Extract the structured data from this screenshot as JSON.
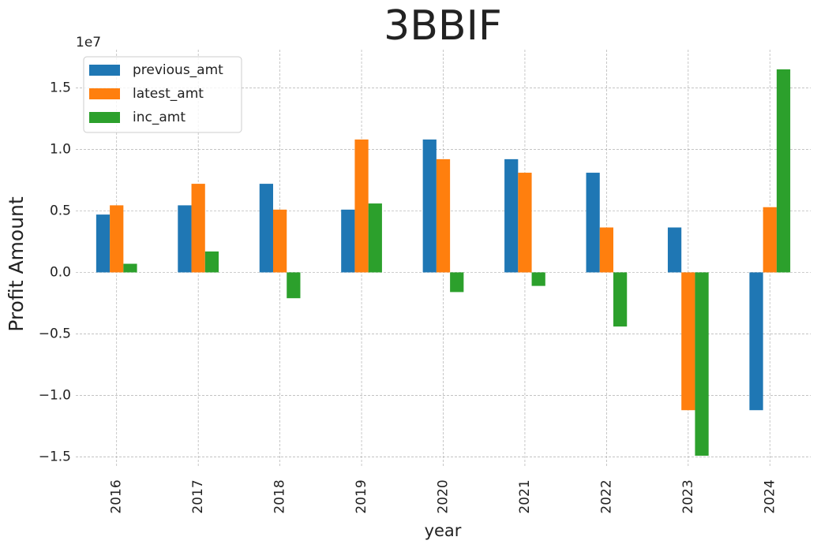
{
  "chart_data": {
    "type": "bar",
    "title": "3BBIF",
    "xlabel": "year",
    "ylabel": "Profit Amount",
    "y_offset_label": "1e7",
    "categories": [
      "2016",
      "2017",
      "2018",
      "2019",
      "2020",
      "2021",
      "2022",
      "2023",
      "2024"
    ],
    "series": [
      {
        "name": "previous_amt",
        "color": "#1f77b4",
        "values": [
          4700000,
          5450000,
          7200000,
          5100000,
          10800000,
          9200000,
          8100000,
          3650000,
          -11200000
        ]
      },
      {
        "name": "latest_amt",
        "color": "#ff7f0e",
        "values": [
          5450000,
          7200000,
          5100000,
          10800000,
          9200000,
          8100000,
          3650000,
          -11200000,
          5300000
        ]
      },
      {
        "name": "inc_amt",
        "color": "#2ca02c",
        "values": [
          700000,
          1700000,
          -2100000,
          5600000,
          -1600000,
          -1100000,
          -4400000,
          -14900000,
          16500000
        ]
      }
    ],
    "ylim": [
      -15800000,
      18100000
    ],
    "yticks": [
      {
        "value": -15000000,
        "label": "−1.5"
      },
      {
        "value": -10000000,
        "label": "−1.0"
      },
      {
        "value": -5000000,
        "label": "−0.5"
      },
      {
        "value": 0,
        "label": "0.0"
      },
      {
        "value": 5000000,
        "label": "0.5"
      },
      {
        "value": 10000000,
        "label": "1.0"
      },
      {
        "value": 15000000,
        "label": "1.5"
      }
    ],
    "grid": true,
    "legend": "upper left"
  }
}
